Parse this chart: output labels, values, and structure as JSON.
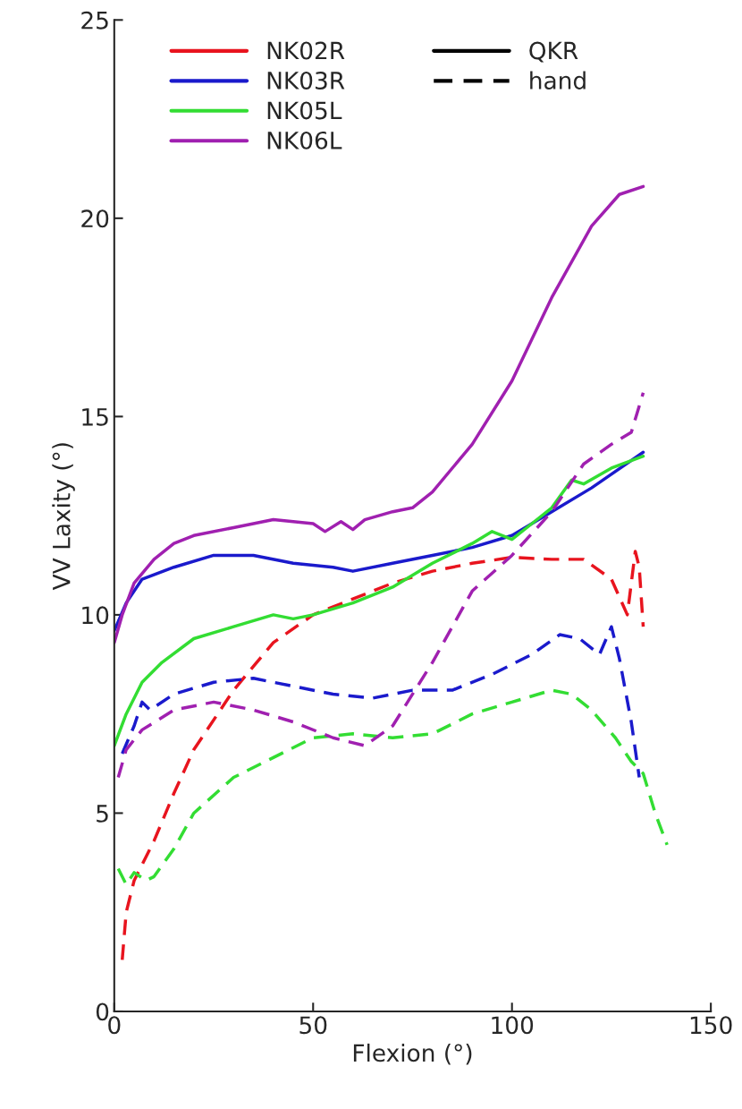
{
  "chart_data": {
    "type": "line",
    "xlabel": "Flexion (°)",
    "ylabel": "VV Laxity (°)",
    "xlim": [
      0,
      150
    ],
    "xticks": [
      0,
      50,
      100,
      150
    ],
    "ylim": [
      0,
      25
    ],
    "yticks": [
      0,
      5,
      10,
      15,
      20,
      25
    ],
    "grid": false,
    "legend": "top",
    "marker": "none",
    "series": [
      {
        "name": "NK02R",
        "color": "#e8141e",
        "line_style": "dashed",
        "x": [
          2,
          3,
          5,
          10,
          15,
          20,
          30,
          40,
          50,
          60,
          70,
          80,
          90,
          100,
          110,
          118,
          125,
          129,
          131,
          132,
          133
        ],
        "values": [
          1.3,
          2.5,
          3.3,
          4.3,
          5.5,
          6.6,
          8.1,
          9.3,
          10.0,
          10.4,
          10.8,
          11.1,
          11.3,
          11.45,
          11.4,
          11.4,
          10.9,
          10.0,
          11.6,
          11.2,
          9.7
        ]
      },
      {
        "name": "NK03R",
        "color": "#1a1acc",
        "line_style": "solid",
        "x": [
          0,
          3,
          7,
          15,
          25,
          35,
          45,
          55,
          60,
          70,
          80,
          90,
          100,
          110,
          120,
          133
        ],
        "values": [
          9.6,
          10.3,
          10.9,
          11.2,
          11.5,
          11.5,
          11.3,
          11.2,
          11.1,
          11.3,
          11.5,
          11.7,
          12.0,
          12.6,
          13.2,
          14.1
        ]
      },
      {
        "color": "#1a1acc",
        "line_style": "dashed",
        "x": [
          2,
          5,
          7,
          9,
          15,
          25,
          35,
          45,
          55,
          65,
          75,
          85,
          95,
          105,
          112,
          117,
          122,
          125,
          127,
          130,
          132
        ],
        "values": [
          6.5,
          7.2,
          7.8,
          7.6,
          8.0,
          8.3,
          8.4,
          8.2,
          8.0,
          7.9,
          8.1,
          8.1,
          8.5,
          9.0,
          9.5,
          9.4,
          9.0,
          9.7,
          8.9,
          7.3,
          5.9
        ]
      },
      {
        "name": "NK05L",
        "color": "#33dd33",
        "line_style": "solid",
        "x": [
          0,
          3,
          7,
          12,
          20,
          30,
          40,
          45,
          50,
          60,
          70,
          80,
          90,
          95,
          100,
          105,
          110,
          115,
          118,
          125,
          133
        ],
        "values": [
          6.7,
          7.5,
          8.3,
          8.8,
          9.4,
          9.7,
          10.0,
          9.9,
          10.0,
          10.3,
          10.7,
          11.3,
          11.8,
          12.1,
          11.9,
          12.3,
          12.7,
          13.4,
          13.3,
          13.7,
          14.0
        ]
      },
      {
        "color": "#33dd33",
        "line_style": "dashed",
        "x": [
          1,
          3,
          5,
          8,
          10,
          15,
          20,
          30,
          40,
          50,
          60,
          70,
          80,
          90,
          100,
          110,
          115,
          120,
          126,
          130,
          133,
          136,
          139
        ],
        "values": [
          3.6,
          3.2,
          3.5,
          3.3,
          3.4,
          4.1,
          5.0,
          5.9,
          6.4,
          6.9,
          7.0,
          6.9,
          7.0,
          7.5,
          7.8,
          8.1,
          8.0,
          7.6,
          6.9,
          6.3,
          6.0,
          5.0,
          4.2
        ]
      },
      {
        "name": "NK06L",
        "color": "#a020b0",
        "line_style": "solid",
        "x": [
          0,
          2,
          5,
          10,
          15,
          20,
          30,
          40,
          50,
          53,
          57,
          60,
          63,
          70,
          75,
          80,
          90,
          100,
          110,
          120,
          127,
          133
        ],
        "values": [
          9.3,
          10.0,
          10.8,
          11.4,
          11.8,
          12.0,
          12.2,
          12.4,
          12.3,
          12.1,
          12.35,
          12.15,
          12.4,
          12.6,
          12.7,
          13.1,
          14.3,
          15.9,
          18.0,
          19.8,
          20.6,
          20.8
        ]
      },
      {
        "color": "#a020b0",
        "line_style": "dashed",
        "x": [
          1,
          3,
          7,
          15,
          25,
          35,
          45,
          55,
          63,
          70,
          80,
          90,
          100,
          110,
          118,
          125,
          130,
          133
        ],
        "values": [
          5.9,
          6.6,
          7.1,
          7.6,
          7.8,
          7.6,
          7.3,
          6.9,
          6.7,
          7.2,
          8.8,
          10.6,
          11.5,
          12.6,
          13.8,
          14.3,
          14.6,
          15.6
        ]
      },
      {
        "name": "QKR",
        "color": "#000000",
        "line_style": "solid"
      },
      {
        "name": "hand",
        "color": "#000000",
        "line_style": "dashed"
      }
    ]
  }
}
